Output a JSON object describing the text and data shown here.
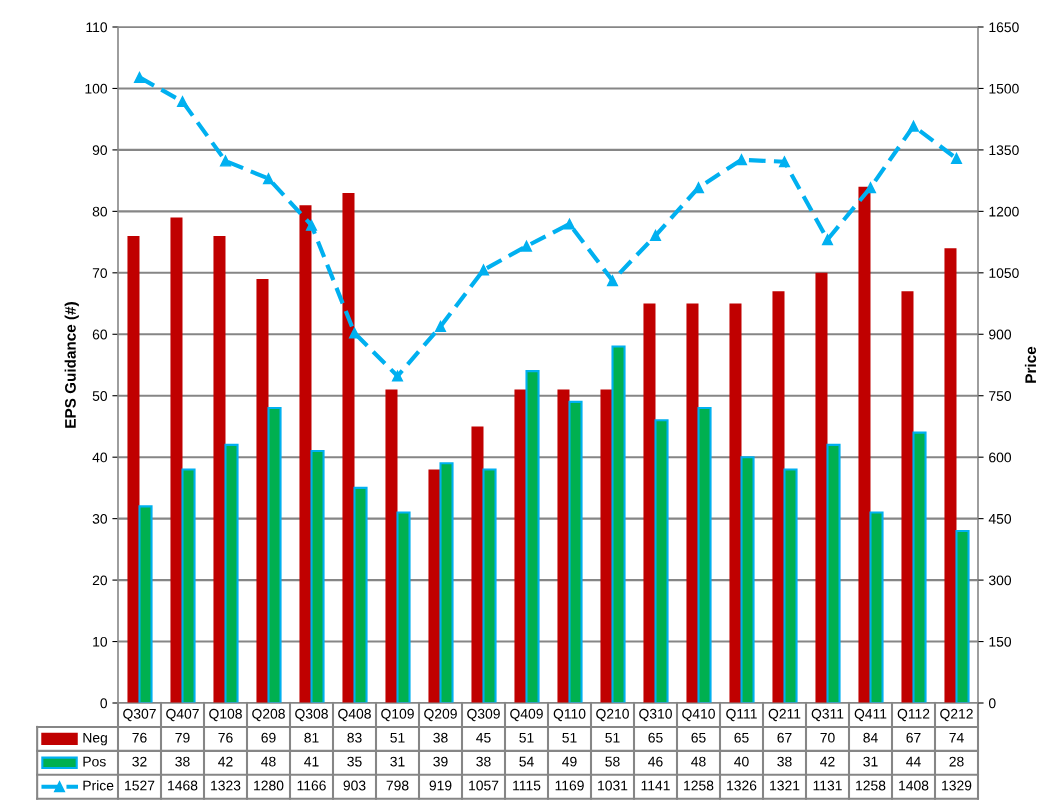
{
  "chart_data": {
    "type": "bar",
    "ylabel": "EPS Guidance (#)",
    "y2label": "Price",
    "categories": [
      "Q307",
      "Q407",
      "Q108",
      "Q208",
      "Q308",
      "Q408",
      "Q109",
      "Q209",
      "Q309",
      "Q409",
      "Q110",
      "Q210",
      "Q310",
      "Q410",
      "Q111",
      "Q211",
      "Q311",
      "Q411",
      "Q112",
      "Q212"
    ],
    "series": [
      {
        "name": "Neg",
        "color": "#c00000",
        "values": [
          76,
          79,
          76,
          69,
          81,
          83,
          51,
          38,
          45,
          51,
          51,
          51,
          65,
          65,
          65,
          67,
          70,
          84,
          67,
          74
        ]
      },
      {
        "name": "Pos",
        "color": "#00b050",
        "values": [
          32,
          38,
          42,
          48,
          41,
          35,
          31,
          39,
          38,
          54,
          49,
          58,
          46,
          48,
          40,
          38,
          42,
          31,
          44,
          28
        ]
      },
      {
        "name": "Price",
        "type": "line",
        "axis": "y2",
        "color": "#00b0f0",
        "marker": "triangle",
        "line_style": "dashed",
        "values": [
          1527,
          1468,
          1323,
          1280,
          1166,
          903,
          798,
          919,
          1057,
          1115,
          1169,
          1031,
          1141,
          1258,
          1326,
          1321,
          1131,
          1258,
          1408,
          1329
        ]
      }
    ],
    "ylim": [
      0,
      110
    ],
    "yticks": [
      0,
      10,
      20,
      30,
      40,
      50,
      60,
      70,
      80,
      90,
      100,
      110
    ],
    "y2lim": [
      0,
      1650
    ],
    "y2ticks": [
      0,
      150,
      300,
      450,
      600,
      750,
      900,
      1050,
      1200,
      1350,
      1500,
      1650
    ],
    "grid": "y",
    "legend": "bottom",
    "data_labels": true
  }
}
